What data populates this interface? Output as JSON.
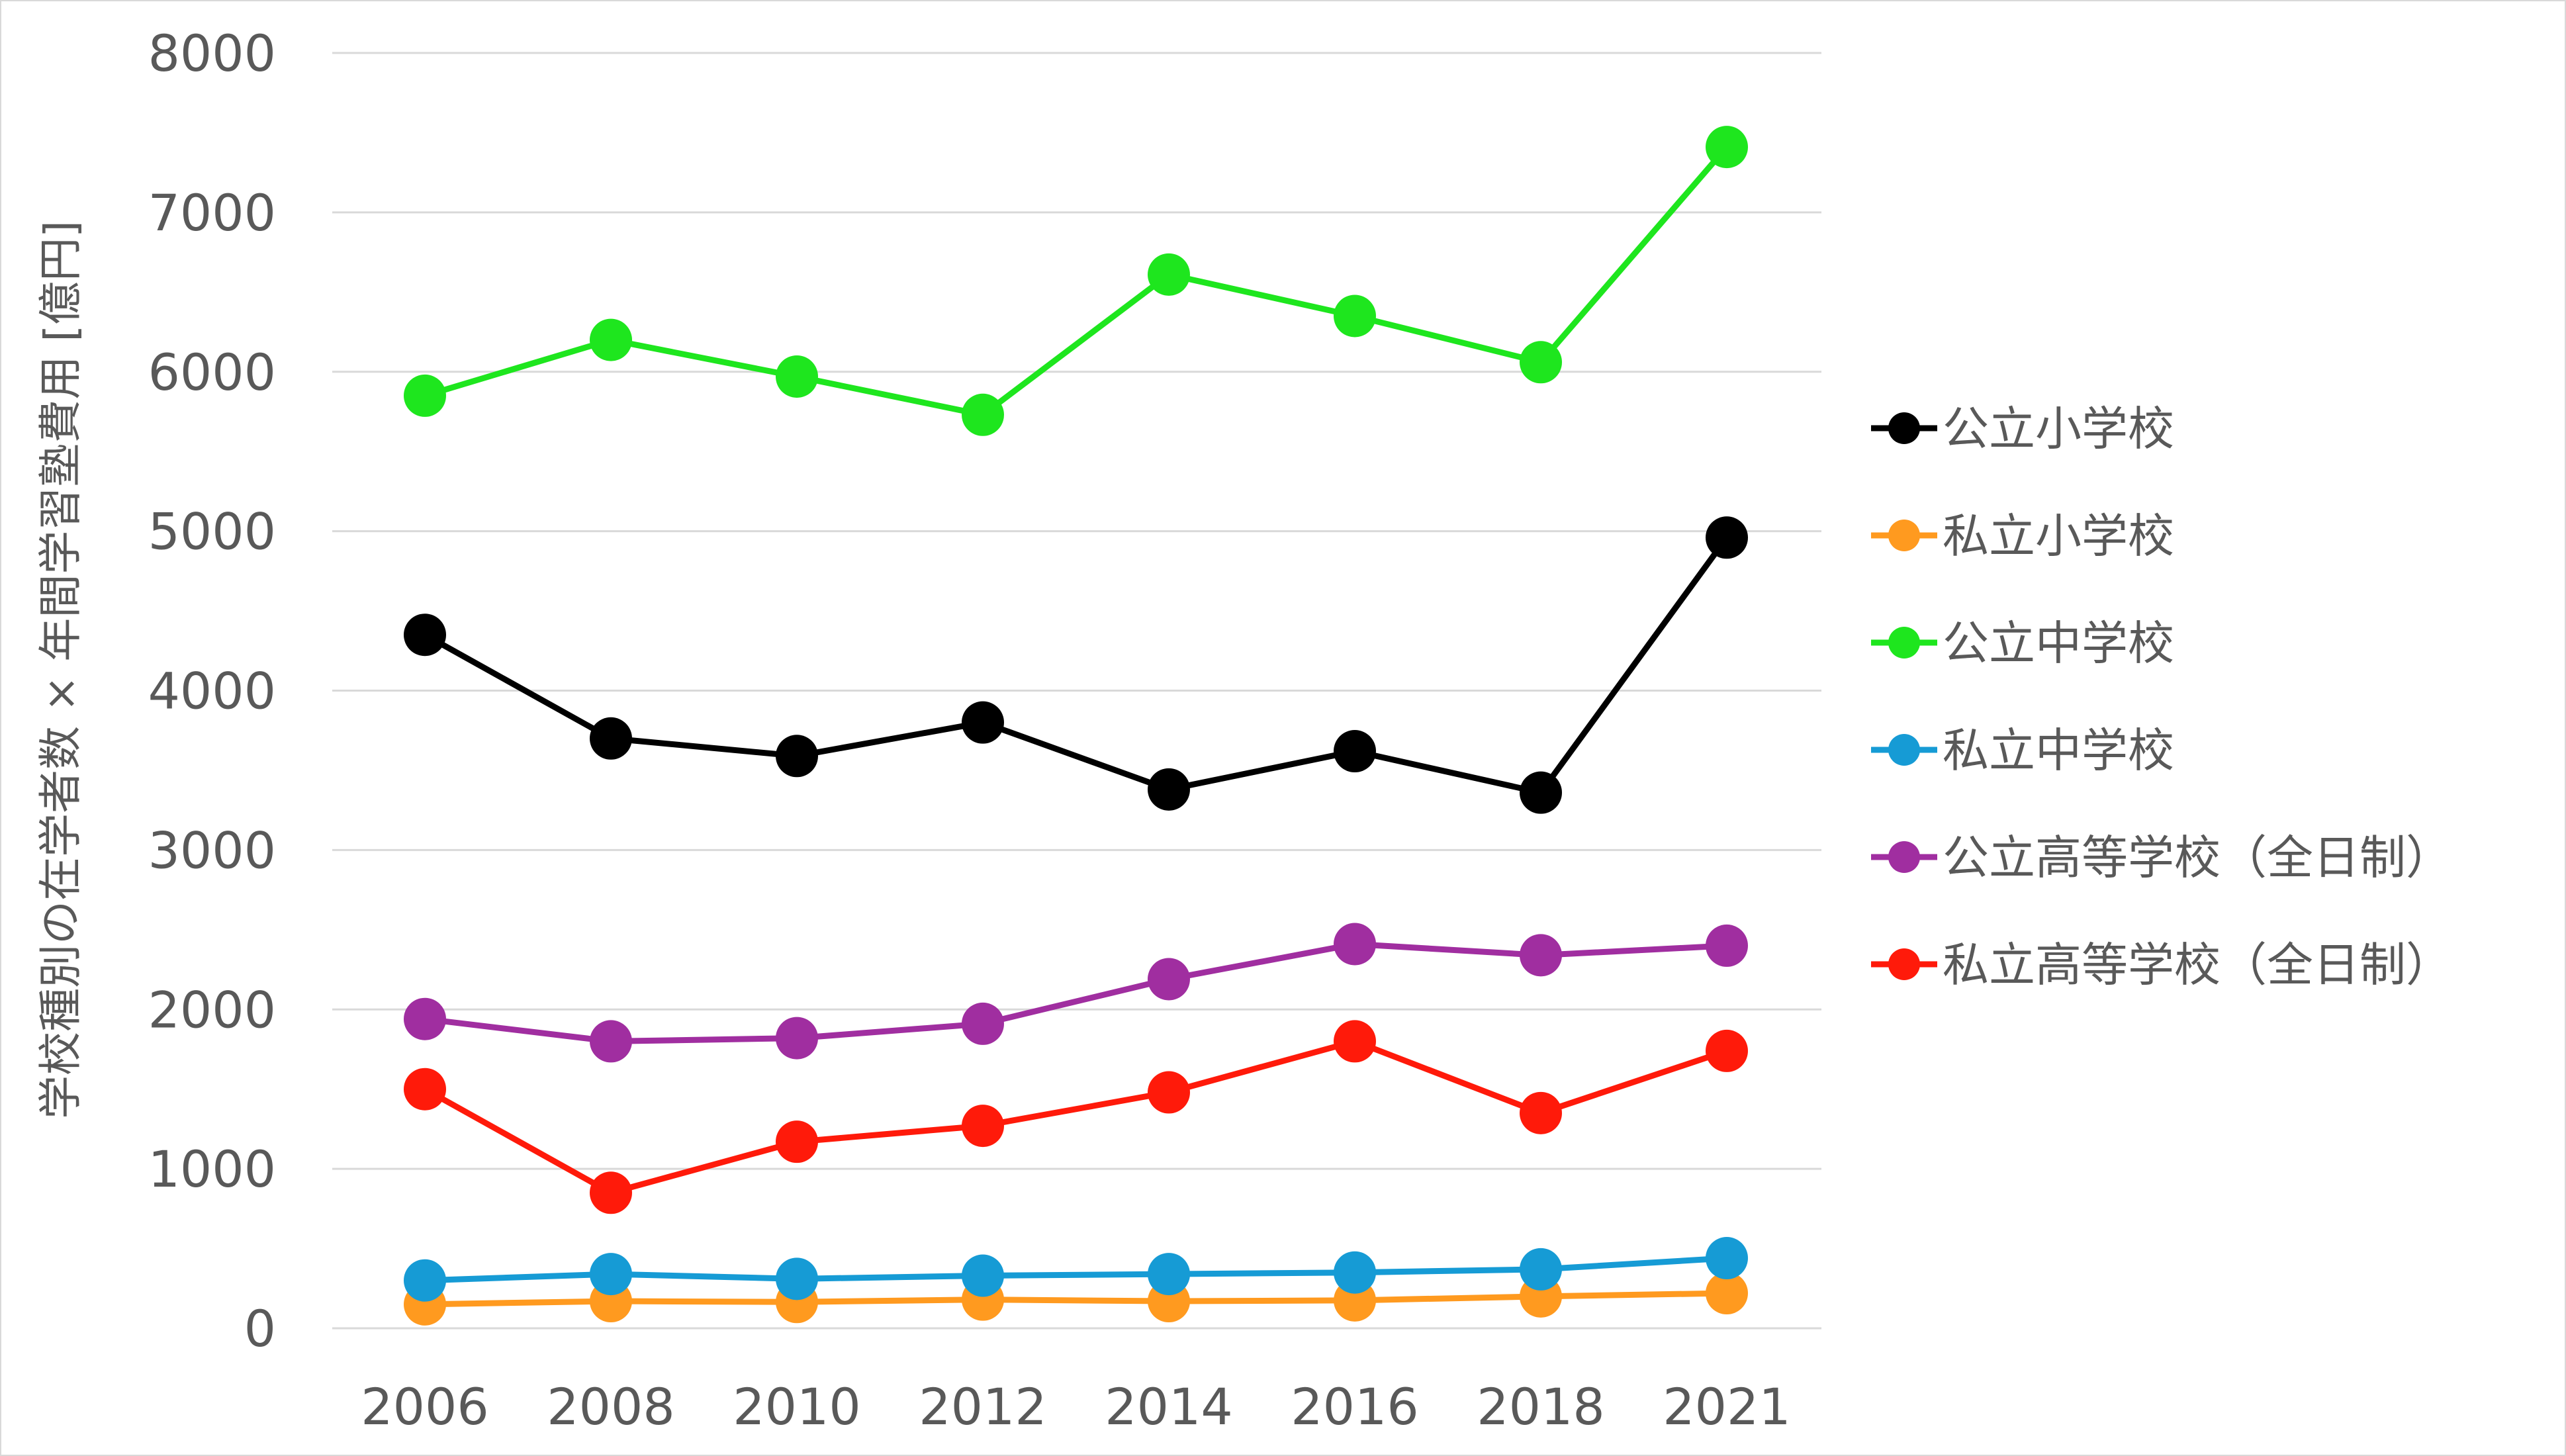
{
  "chart_data": {
    "type": "line",
    "title": "",
    "xlabel": "",
    "ylabel": "学校種別の在学者数 × 年間学習塾費用 [億円]",
    "categories": [
      "2006",
      "2008",
      "2010",
      "2012",
      "2014",
      "2016",
      "2018",
      "2021"
    ],
    "ylim": [
      0,
      8000
    ],
    "yticks": [
      0,
      1000,
      2000,
      3000,
      4000,
      5000,
      6000,
      7000,
      8000
    ],
    "grid": true,
    "legend_position": "right",
    "series": [
      {
        "name": "公立小学校",
        "color": "#000000",
        "values": [
          4350,
          3700,
          3590,
          3800,
          3380,
          3620,
          3360,
          4960
        ]
      },
      {
        "name": "私立小学校",
        "color": "#ff9a1f",
        "values": [
          150,
          170,
          165,
          180,
          170,
          175,
          200,
          220
        ]
      },
      {
        "name": "公立中学校",
        "color": "#1ee61e",
        "values": [
          5850,
          6200,
          5970,
          5730,
          6610,
          6350,
          6060,
          7410
        ]
      },
      {
        "name": "私立中学校",
        "color": "#169bd5",
        "values": [
          300,
          340,
          310,
          330,
          340,
          350,
          370,
          440
        ]
      },
      {
        "name": "公立高等学校（全日制）",
        "color": "#a02ea0",
        "values": [
          1940,
          1800,
          1820,
          1910,
          2190,
          2410,
          2340,
          2400
        ]
      },
      {
        "name": "私立高等学校（全日制）",
        "color": "#ff1a0a",
        "values": [
          1500,
          850,
          1170,
          1270,
          1480,
          1800,
          1350,
          1740
        ]
      }
    ]
  }
}
